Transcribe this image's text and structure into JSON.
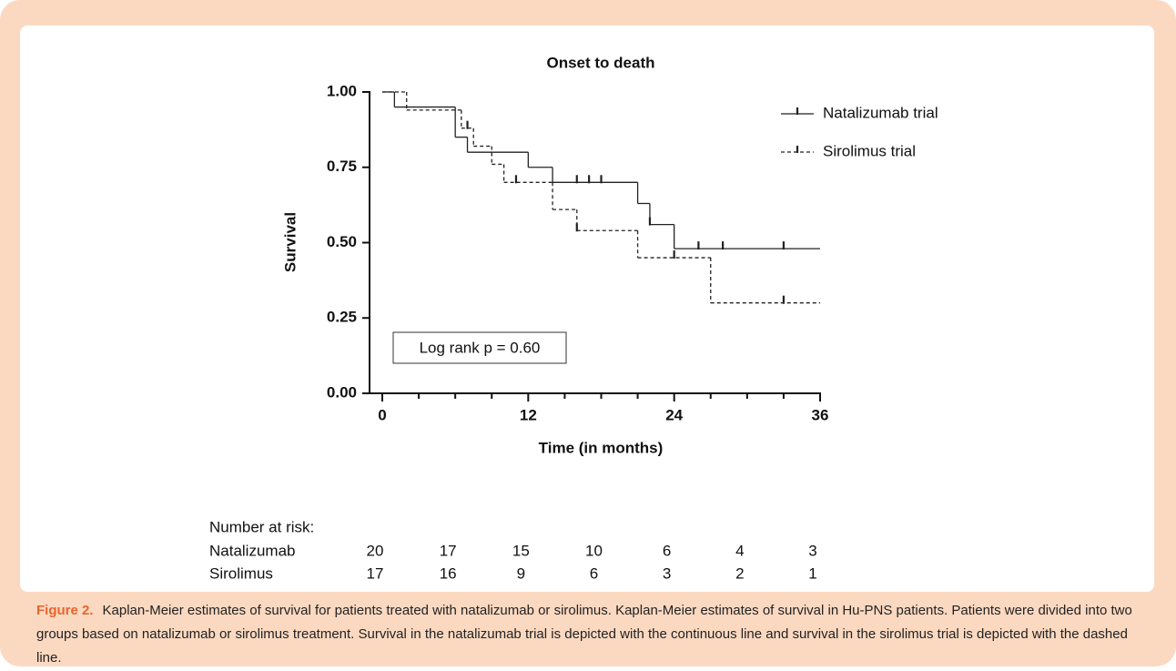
{
  "chart_data": {
    "type": "step",
    "title": "Onset to death",
    "xlabel": "Time (in months)",
    "ylabel": "Survival",
    "xlim": [
      0,
      36
    ],
    "xticks": [
      0,
      12,
      24,
      36
    ],
    "xminorticks": [
      3,
      6,
      9,
      15,
      18,
      21,
      27,
      30,
      33
    ],
    "ylim": [
      0,
      1
    ],
    "yticks": [
      {
        "value": 0,
        "label": "0.00"
      },
      {
        "value": 0.25,
        "label": "0.25"
      },
      {
        "value": 0.5,
        "label": "0.50"
      },
      {
        "value": 0.75,
        "label": "0.75"
      },
      {
        "value": 1,
        "label": "1.00"
      }
    ],
    "legend": "upper right",
    "annotation": "Log rank p = 0.60",
    "series": [
      {
        "name": "Natalizumab trial",
        "color": "#222222",
        "linestyle": "solid",
        "x": [
          0,
          1,
          6,
          7,
          12,
          14,
          21,
          22,
          24
        ],
        "values": [
          1,
          0.95,
          0.85,
          0.8,
          0.75,
          0.7,
          0.63,
          0.56,
          0.48
        ],
        "censor_x": [
          16,
          17,
          18,
          22,
          26,
          28,
          33
        ],
        "censor_values": [
          0.7,
          0.7,
          0.7,
          0.56,
          0.48,
          0.48,
          0.48
        ]
      },
      {
        "name": "Sirolimus trial",
        "color": "#222222",
        "linestyle": "dashed",
        "x": [
          0,
          2,
          6.5,
          7.5,
          9,
          10,
          14,
          16,
          21,
          27
        ],
        "values": [
          1,
          0.94,
          0.88,
          0.82,
          0.76,
          0.7,
          0.61,
          0.54,
          0.45,
          0.3
        ],
        "censor_x": [
          7,
          11,
          16,
          24,
          33
        ],
        "censor_values": [
          0.88,
          0.7,
          0.54,
          0.45,
          0.3
        ]
      }
    ],
    "risk_table": {
      "title": "Number at risk:",
      "rows": [
        {
          "name": "Natalizumab",
          "values": [
            20,
            17,
            15,
            10,
            6,
            4,
            3
          ]
        },
        {
          "name": "Sirolimus",
          "values": [
            17,
            16,
            9,
            6,
            3,
            2,
            1
          ]
        }
      ]
    }
  },
  "caption": {
    "label": "Figure 2.",
    "text": "Kaplan-Meier estimates of survival for patients treated with natalizumab or sirolimus. Kaplan-Meier estimates of survival in Hu-PNS patients. Patients were divided into two groups based on natalizumab or sirolimus treatment. Survival in the natalizumab trial is depicted with the continuous line and survival in the sirolimus trial is depicted with the dashed line."
  }
}
